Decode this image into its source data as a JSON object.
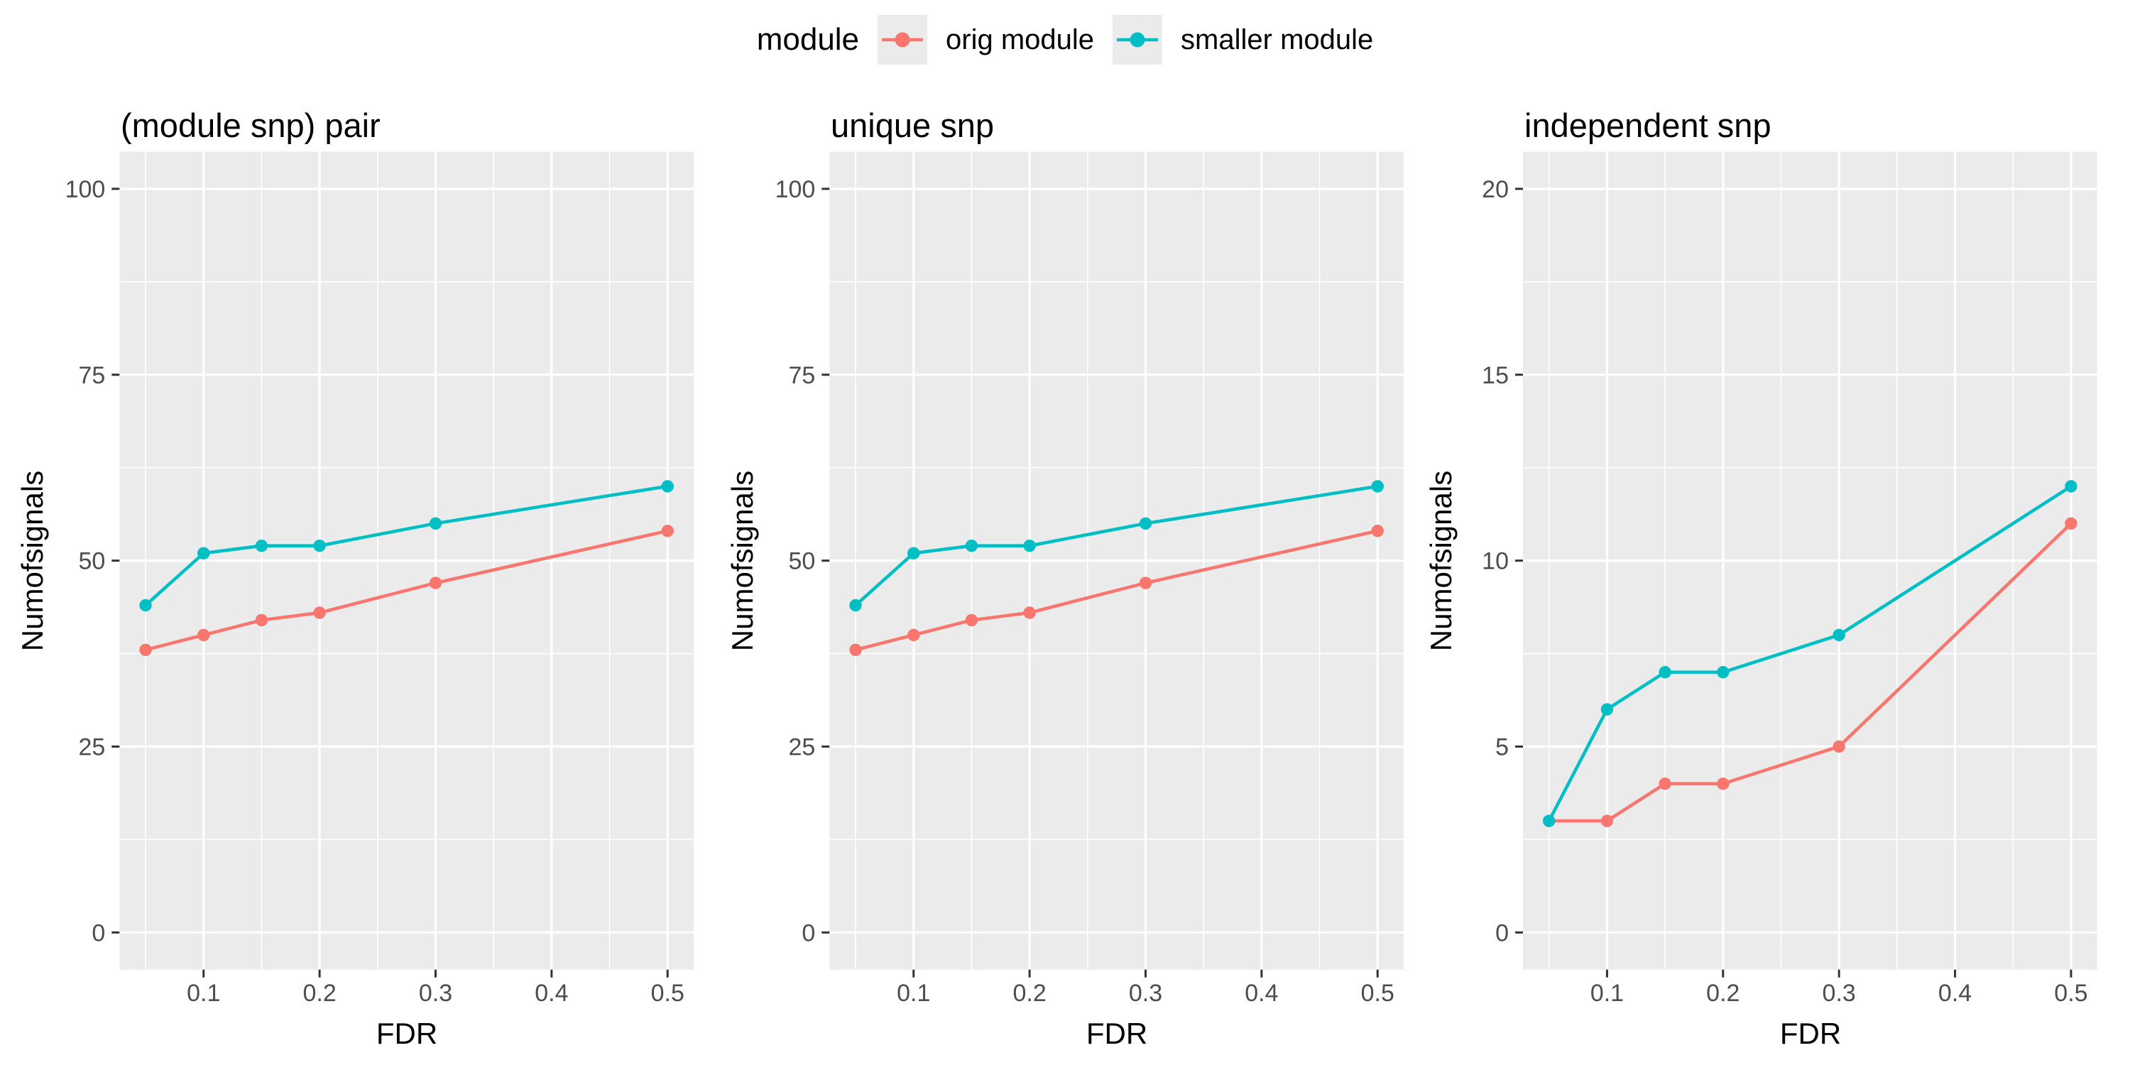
{
  "legend": {
    "title": "module",
    "items": [
      {
        "label": "orig module",
        "color": "#F8766D"
      },
      {
        "label": "smaller module",
        "color": "#00BFC4"
      }
    ]
  },
  "styles": {
    "panel_background": "#EBEBEB",
    "grid_color": "#FFFFFF",
    "tick_text_color": "#4D4D4D",
    "tick_mark_color": "#333333"
  },
  "chart_data": [
    {
      "type": "line",
      "title": "(module snp) pair",
      "xlabel": "FDR",
      "ylabel": "Numofsignals",
      "x": [
        0.05,
        0.1,
        0.15,
        0.2,
        0.3,
        0.5
      ],
      "series": [
        {
          "name": "orig module",
          "color": "#F8766D",
          "values": [
            38,
            40,
            42,
            43,
            47,
            54
          ]
        },
        {
          "name": "smaller module",
          "color": "#00BFC4",
          "values": [
            44,
            51,
            52,
            52,
            55,
            60
          ]
        }
      ],
      "xlim": [
        0.05,
        0.5
      ],
      "ylim": [
        0,
        100
      ],
      "xticks": [
        0.1,
        0.2,
        0.3,
        0.4,
        0.5
      ],
      "yticks": [
        0,
        25,
        50,
        75,
        100
      ],
      "grid": "on",
      "legend_position": "top"
    },
    {
      "type": "line",
      "title": "unique snp",
      "xlabel": "FDR",
      "ylabel": "Numofsignals",
      "x": [
        0.05,
        0.1,
        0.15,
        0.2,
        0.3,
        0.5
      ],
      "series": [
        {
          "name": "orig module",
          "color": "#F8766D",
          "values": [
            38,
            40,
            42,
            43,
            47,
            54
          ]
        },
        {
          "name": "smaller module",
          "color": "#00BFC4",
          "values": [
            44,
            51,
            52,
            52,
            55,
            60
          ]
        }
      ],
      "xlim": [
        0.05,
        0.5
      ],
      "ylim": [
        0,
        100
      ],
      "xticks": [
        0.1,
        0.2,
        0.3,
        0.4,
        0.5
      ],
      "yticks": [
        0,
        25,
        50,
        75,
        100
      ],
      "grid": "on",
      "legend_position": "top"
    },
    {
      "type": "line",
      "title": "independent snp",
      "xlabel": "FDR",
      "ylabel": "Numofsignals",
      "x": [
        0.05,
        0.1,
        0.15,
        0.2,
        0.3,
        0.5
      ],
      "series": [
        {
          "name": "orig module",
          "color": "#F8766D",
          "values": [
            3,
            3,
            4,
            4,
            5,
            11
          ]
        },
        {
          "name": "smaller module",
          "color": "#00BFC4",
          "values": [
            3,
            6,
            7,
            7,
            8,
            12
          ]
        }
      ],
      "xlim": [
        0.05,
        0.5
      ],
      "ylim": [
        0,
        20
      ],
      "xticks": [
        0.1,
        0.2,
        0.3,
        0.4,
        0.5
      ],
      "yticks": [
        0,
        5,
        10,
        15,
        20
      ],
      "grid": "on",
      "legend_position": "top"
    }
  ]
}
